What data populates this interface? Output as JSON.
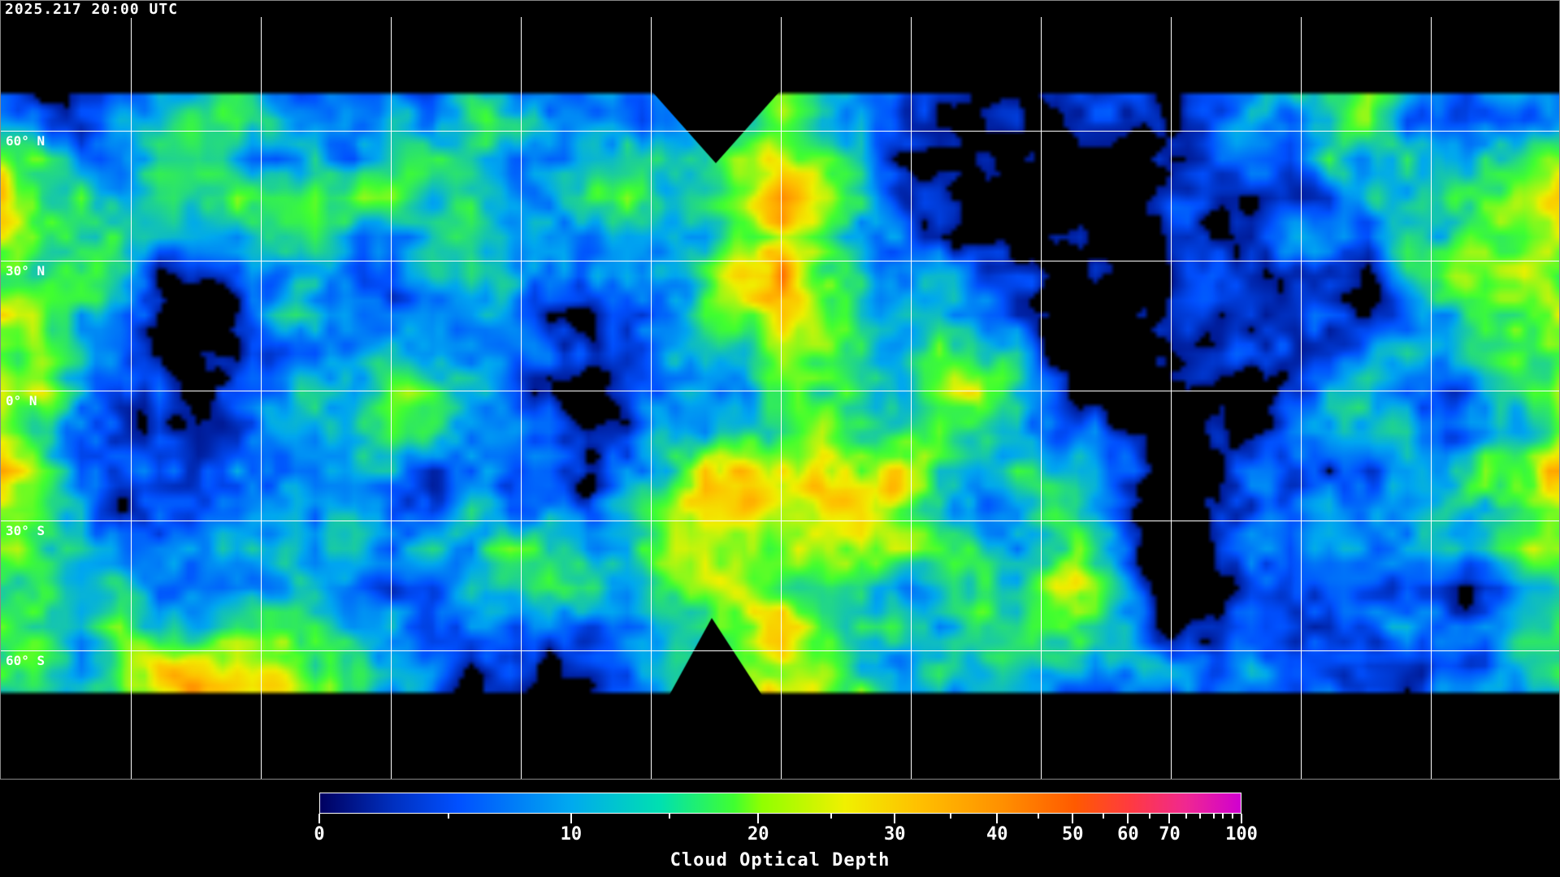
{
  "header": {
    "timestamp": "2025.217 20:00 UTC"
  },
  "map": {
    "projection": "equirectangular",
    "grid_color": "#ffffff",
    "lat_labels": [
      "60° N",
      "30° N",
      "0° N",
      "30° S",
      "60° S"
    ],
    "coastline_color": "#ffffff"
  },
  "colorbar": {
    "title": "Cloud Optical Depth",
    "range": [
      0,
      100
    ],
    "tick_labels": [
      "0",
      "10",
      "20",
      "30",
      "40",
      "50",
      "60",
      "70",
      "100"
    ],
    "colors": [
      "#000060",
      "#0050ff",
      "#00a8f0",
      "#40ff30",
      "#f0f000",
      "#ffc000",
      "#ff5a00",
      "#ff3a40",
      "#d000d0"
    ]
  }
}
